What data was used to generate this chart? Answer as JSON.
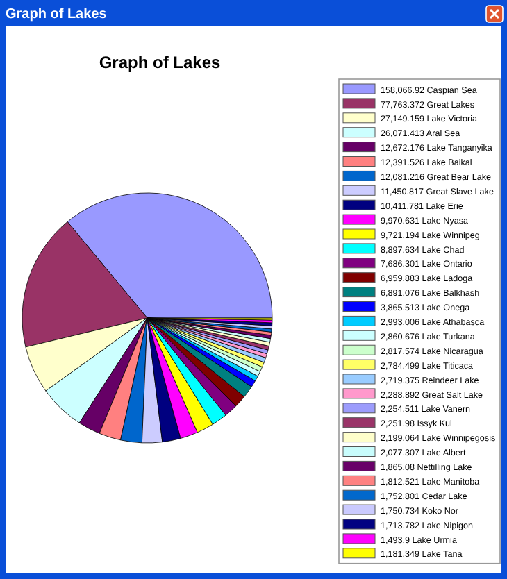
{
  "chart_data": {
    "type": "pie",
    "title": "Graph of Lakes",
    "annotations": [
      "Graph of Lakes"
    ],
    "legend": "right",
    "categories": [
      "Caspian Sea",
      "Great Lakes",
      "Lake Victoria",
      "Aral Sea",
      "Lake Tanganyika",
      "Lake Baikal",
      "Great Bear Lake",
      "Great Slave Lake",
      "Lake Erie",
      "Lake Nyasa",
      "Lake Winnipeg",
      "Lake Chad",
      "Lake Ontario",
      "Lake Ladoga",
      "Lake Balkhash",
      "Lake Onega",
      "Lake Athabasca",
      "Lake Turkana",
      "Lake Nicaragua",
      "Lake Titicaca",
      "Reindeer Lake",
      "Great Salt Lake",
      "Lake Vanern",
      "Issyk Kul",
      "Lake Winnipegosis",
      "Lake Albert",
      "Nettilling Lake",
      "Lake Manitoba",
      "Cedar Lake",
      "Koko Nor",
      "Lake Nipigon",
      "Lake Urmia",
      "Lake Tana"
    ],
    "values": [
      158066.92,
      77763.372,
      27149.159,
      26071.413,
      12672.176,
      12391.526,
      12081.216,
      11450.817,
      10411.781,
      9970.631,
      9721.194,
      8897.634,
      7686.301,
      6959.883,
      6891.076,
      3865.513,
      2993.006,
      2860.676,
      2817.574,
      2784.499,
      2719.375,
      2288.892,
      2254.511,
      2251.98,
      2199.064,
      2077.307,
      1865.08,
      1812.521,
      1752.801,
      1750.734,
      1713.782,
      1493.9,
      1181.349
    ],
    "value_labels": [
      "158,066.92",
      "77,763.372",
      "27,149.159",
      "26,071.413",
      "12,672.176",
      "12,391.526",
      "12,081.216",
      "11,450.817",
      "10,411.781",
      "9,970.631",
      "9,721.194",
      "8,897.634",
      "7,686.301",
      "6,959.883",
      "6,891.076",
      "3,865.513",
      "2,993.006",
      "2,860.676",
      "2,817.574",
      "2,784.499",
      "2,719.375",
      "2,288.892",
      "2,254.511",
      "2,251.98",
      "2,199.064",
      "2,077.307",
      "1,865.08",
      "1,812.521",
      "1,752.801",
      "1,750.734",
      "1,713.782",
      "1,493.9",
      "1,181.349"
    ],
    "colors": [
      "#9999ff",
      "#993366",
      "#ffffcc",
      "#ccffff",
      "#660066",
      "#ff8080",
      "#0066cc",
      "#ccccff",
      "#000080",
      "#ff00ff",
      "#ffff00",
      "#00ffff",
      "#800080",
      "#800000",
      "#008080",
      "#0000ff",
      "#00ccff",
      "#ccffff",
      "#ccffcc",
      "#ffff66",
      "#99ccff",
      "#ff99cc",
      "#9c9cfc",
      "#9a3468",
      "#fefecb",
      "#c8fcfc",
      "#680068",
      "#fe8282",
      "#0268cc",
      "#cacafe",
      "#020282",
      "#fe02fe",
      "#fefe02"
    ]
  }
}
